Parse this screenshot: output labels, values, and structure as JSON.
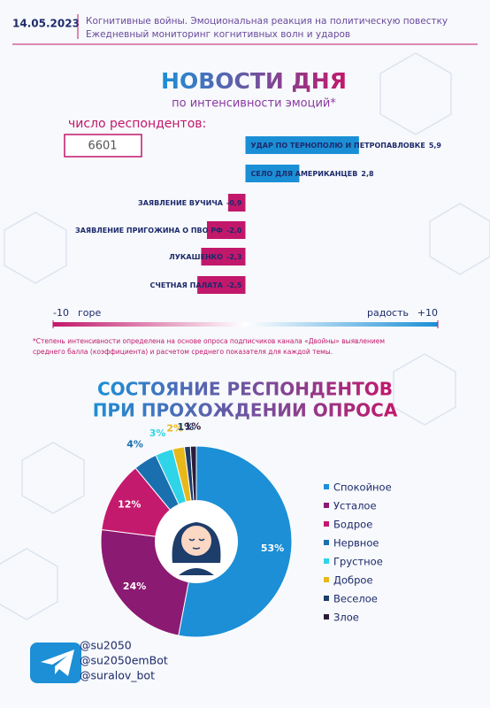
{
  "header": {
    "date": "14.05.2023",
    "line1": "Когнитивные войны. Эмоциональная реакция на политическую повестку",
    "line2": "Ежедневный мониторинг когнитивных волн и ударов"
  },
  "news": {
    "title": "НОВОСТИ ДНЯ",
    "subtitle": "по интенсивности эмоций*",
    "respondents_label": "число респондентов:",
    "respondents": 6601,
    "footnote1": "*Степень интенсивности определена на основе опроса подписчиков канала «Двойны» выявлением",
    "footnote2": "среднего балла (коэффициента) и расчетом среднего показателя для каждой темы."
  },
  "chart_data": [
    {
      "type": "hbar",
      "categories": [
        "УДАР ПО ТЕРНОПОЛЮ И ПЕТРОПАВЛОВКЕ",
        "СЕЛО ДЛЯ АМЕРИКАНЦЕВ",
        "ЗАЯВЛЕНИЕ ВУЧИЧА",
        "ЗАЯВЛЕНИЕ ПРИГОЖИНА О ПВО РФ",
        "ЛУКАШЕНКО",
        "СЧЕТНАЯ ПАЛАТА"
      ],
      "values": [
        5.9,
        2.8,
        -0.9,
        -2.0,
        -2.3,
        -2.5
      ],
      "value_labels": [
        "5,9",
        "2,8",
        "-0,9",
        "-2,0",
        "-2,3",
        "-2,5"
      ],
      "positive_color": "#1b8fd6",
      "negative_color": "#c2186b",
      "xlim": [
        -10,
        10
      ],
      "xticks": [
        -10,
        {
          "value": 10,
          "label": "+10"
        }
      ],
      "left_label": "горе",
      "right_label": "радость"
    },
    {
      "type": "pie",
      "title": "СОСТОЯНИЕ РЕСПОНДЕНТОВ",
      "subtitle": "ПРИ ПРОХОЖДЕНИИ ОПРОСА",
      "categories": [
        "Спокойное",
        "Усталое",
        "Бодрое",
        "Нервное",
        "Грустное",
        "Доброе",
        "Веселое",
        "Злое"
      ],
      "values": [
        53,
        24,
        12,
        4,
        3,
        2,
        1,
        1
      ],
      "value_labels": [
        "53%",
        "24%",
        "12%",
        "4%",
        "3%",
        "2%",
        "1%",
        "1%"
      ],
      "colors": [
        "#1c8fd6",
        "#8b1a72",
        "#c41a6e",
        "#1a6faf",
        "#2fd4e8",
        "#e8b81a",
        "#1d3d6b",
        "#2b1b3a"
      ],
      "legend": "right"
    }
  ],
  "footer": {
    "handles": [
      "@su2050",
      "@su2050emBot",
      "@suralov_bot"
    ]
  }
}
